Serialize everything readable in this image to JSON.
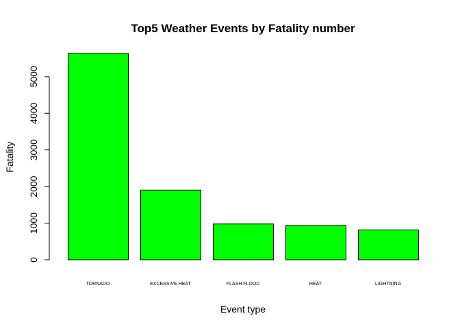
{
  "chart_data": {
    "type": "bar",
    "title": "Top5 Weather Events by Fatality number",
    "xlabel": "Event type",
    "ylabel": "Fatality",
    "categories": [
      "TORNADO",
      "EXCESSIVE HEAT",
      "FLASH FLOOD",
      "HEAT",
      "LIGHTNING"
    ],
    "values": [
      5633,
      1903,
      978,
      937,
      816
    ],
    "yticks": [
      0,
      1000,
      2000,
      3000,
      4000,
      5000
    ],
    "ylim": [
      0,
      5633
    ],
    "bar_color": "#00ff00",
    "grid": false
  }
}
